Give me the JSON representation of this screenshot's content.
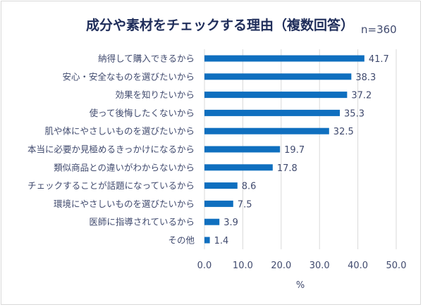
{
  "chart_data": {
    "type": "bar",
    "orientation": "horizontal",
    "title": "成分や素材をチェックする理由（複数回答）",
    "subtitle": "n=360",
    "xlabel": "%",
    "ylabel": "",
    "xlim": [
      0,
      50
    ],
    "xticks": [
      "0.0",
      "10.0",
      "20.0",
      "30.0",
      "40.0",
      "50.0"
    ],
    "grid": true,
    "bar_color": "#0f6fbf",
    "categories": [
      "納得して購入できるから",
      "安心・安全なものを選びたいから",
      "効果を知りたいから",
      "使って後悔したくないから",
      "肌や体にやさしいものを選びたいから",
      "本当に必要か見極めるきっかけになるから",
      "類似商品との違いがわからないから",
      "チェックすることが話題になっているから",
      "環境にやさしいものを選びたいから",
      "医師に指導されているから",
      "その他"
    ],
    "values": [
      41.7,
      38.3,
      37.2,
      35.3,
      32.5,
      19.7,
      17.8,
      8.6,
      7.5,
      3.9,
      1.4
    ],
    "value_labels": [
      "41.7",
      "38.3",
      "37.2",
      "35.3",
      "32.5",
      "19.7",
      "17.8",
      "8.6",
      "7.5",
      "3.9",
      "1.4"
    ]
  }
}
